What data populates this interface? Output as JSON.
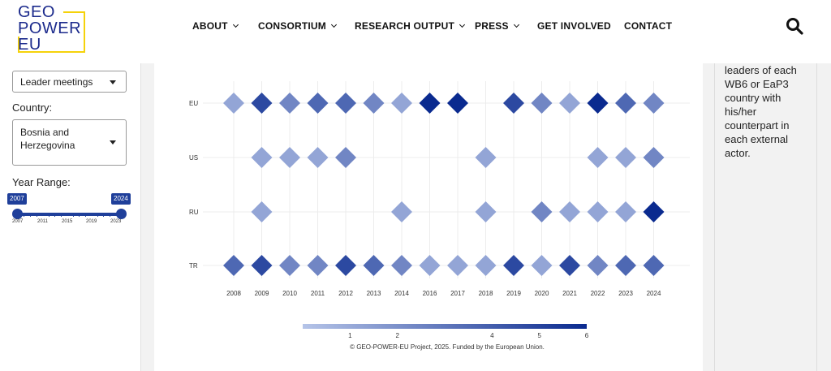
{
  "header": {
    "logo_lines": [
      "GEO",
      "POWER",
      "EU"
    ],
    "nav": [
      {
        "label": "ABOUT",
        "dropdown": true
      },
      {
        "label": "CONSORTIUM",
        "dropdown": true
      },
      {
        "label": "RESEARCH OUTPUT",
        "dropdown": true
      },
      {
        "label": "PRESS",
        "dropdown": true
      },
      {
        "label": "GET INVOLVED",
        "dropdown": false
      },
      {
        "label": "CONTACT",
        "dropdown": false
      }
    ],
    "search_icon": "search-icon"
  },
  "filters": {
    "measure_value": "Leader meetings",
    "country_label": "Country:",
    "country_value": "Bosnia and Herzegovina",
    "country_value_lines": [
      "Bosnia and",
      "Herzegovina"
    ],
    "year_range_label": "Year Range:",
    "year_min": "2007",
    "year_max": "2024",
    "year_ticks": [
      "2007",
      "2011",
      "2015",
      "2019",
      "2023"
    ]
  },
  "info_panel": {
    "text_lines": [
      "leaders of each",
      "WB6 or EaP3",
      "country with",
      "his/her",
      "counterpart in",
      "each external",
      "actor."
    ]
  },
  "chart_data": {
    "type": "heatmap",
    "marker": "diamond",
    "x": [
      "2008",
      "2009",
      "2010",
      "2011",
      "2012",
      "2013",
      "2014",
      "2016",
      "2017",
      "2018",
      "2019",
      "2020",
      "2021",
      "2022",
      "2023",
      "2024"
    ],
    "y": [
      "EU",
      "US",
      "RU",
      "TR"
    ],
    "values": [
      [
        2,
        5,
        3,
        4,
        4,
        3,
        2,
        6,
        6,
        null,
        5,
        3,
        2,
        6,
        4,
        3
      ],
      [
        null,
        2,
        2,
        2,
        3,
        null,
        null,
        null,
        null,
        2,
        null,
        null,
        null,
        2,
        2,
        3
      ],
      [
        null,
        2,
        null,
        null,
        null,
        null,
        2,
        null,
        null,
        2,
        null,
        3,
        2,
        2,
        2,
        6
      ],
      [
        4,
        5,
        3,
        3,
        5,
        4,
        3,
        2,
        2,
        2,
        5,
        2,
        5,
        3,
        4,
        4
      ]
    ],
    "colorbar": {
      "min": 0,
      "max": 6,
      "ticks": [
        "1",
        "2",
        "4",
        "5",
        "6"
      ],
      "tick_values": [
        1,
        2,
        4,
        5,
        6
      ],
      "color_low": "#b5c4e8",
      "color_high": "#0a2a8f"
    },
    "footer": "© GEO-POWER-EU Project, 2025. Funded by the European Union."
  },
  "colors": {
    "accent": "#1f3f9a",
    "logo_blue": "#1b2a8c",
    "logo_yellow": "#f5d20a"
  }
}
